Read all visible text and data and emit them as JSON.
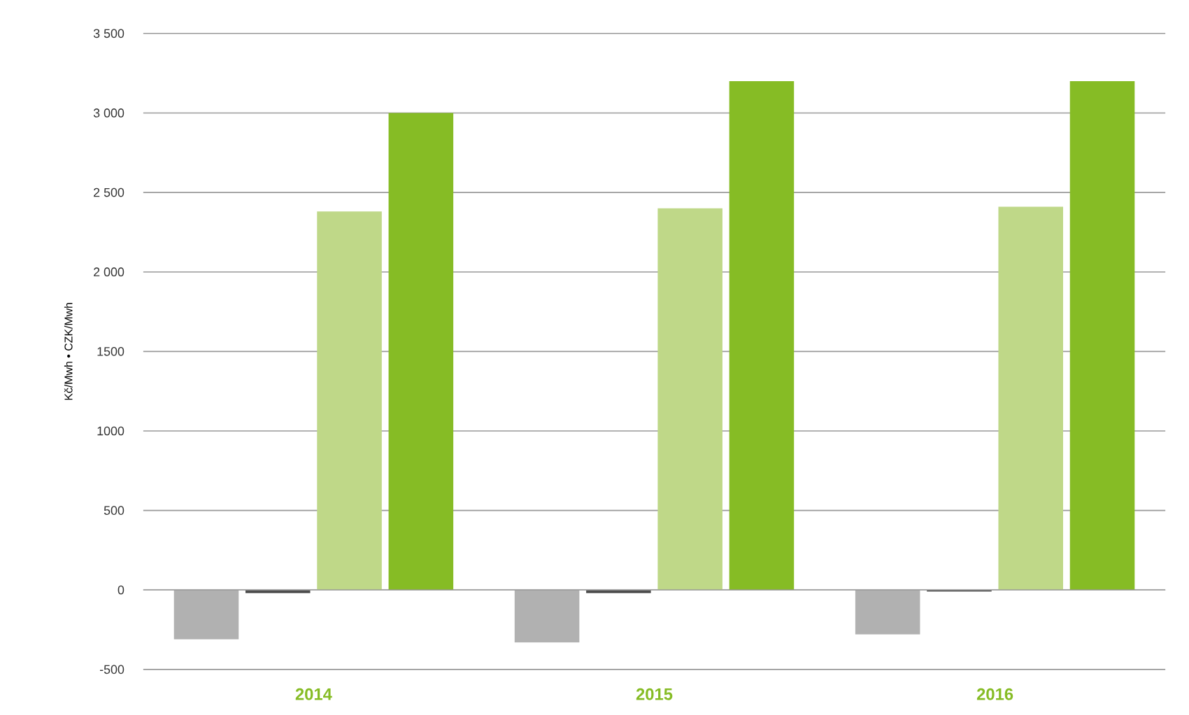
{
  "chart_data": {
    "type": "bar",
    "ylabel": "Kč/Mwh • CZK/Mwh",
    "categories": [
      "2014",
      "2015",
      "2016"
    ],
    "series": [
      {
        "color": "#b1b1b1",
        "values": [
          -310,
          -330,
          -280
        ]
      },
      {
        "color": "#4d4d4d",
        "values": [
          -20,
          -20,
          -10
        ]
      },
      {
        "color": "#bfd888",
        "values": [
          2380,
          2400,
          2410
        ]
      },
      {
        "color": "#86bc25",
        "values": [
          3000,
          3200,
          3200
        ]
      }
    ],
    "ylim": [
      -500,
      3500
    ],
    "yticks": [
      -500,
      0,
      500,
      1000,
      1500,
      {
        "value": 2000,
        "label": "2 000"
      },
      {
        "value": 2500,
        "label": "2 500"
      },
      {
        "value": 3000,
        "label": "3 000"
      },
      {
        "value": 3500,
        "label": "3 500"
      }
    ],
    "grid": "y"
  }
}
